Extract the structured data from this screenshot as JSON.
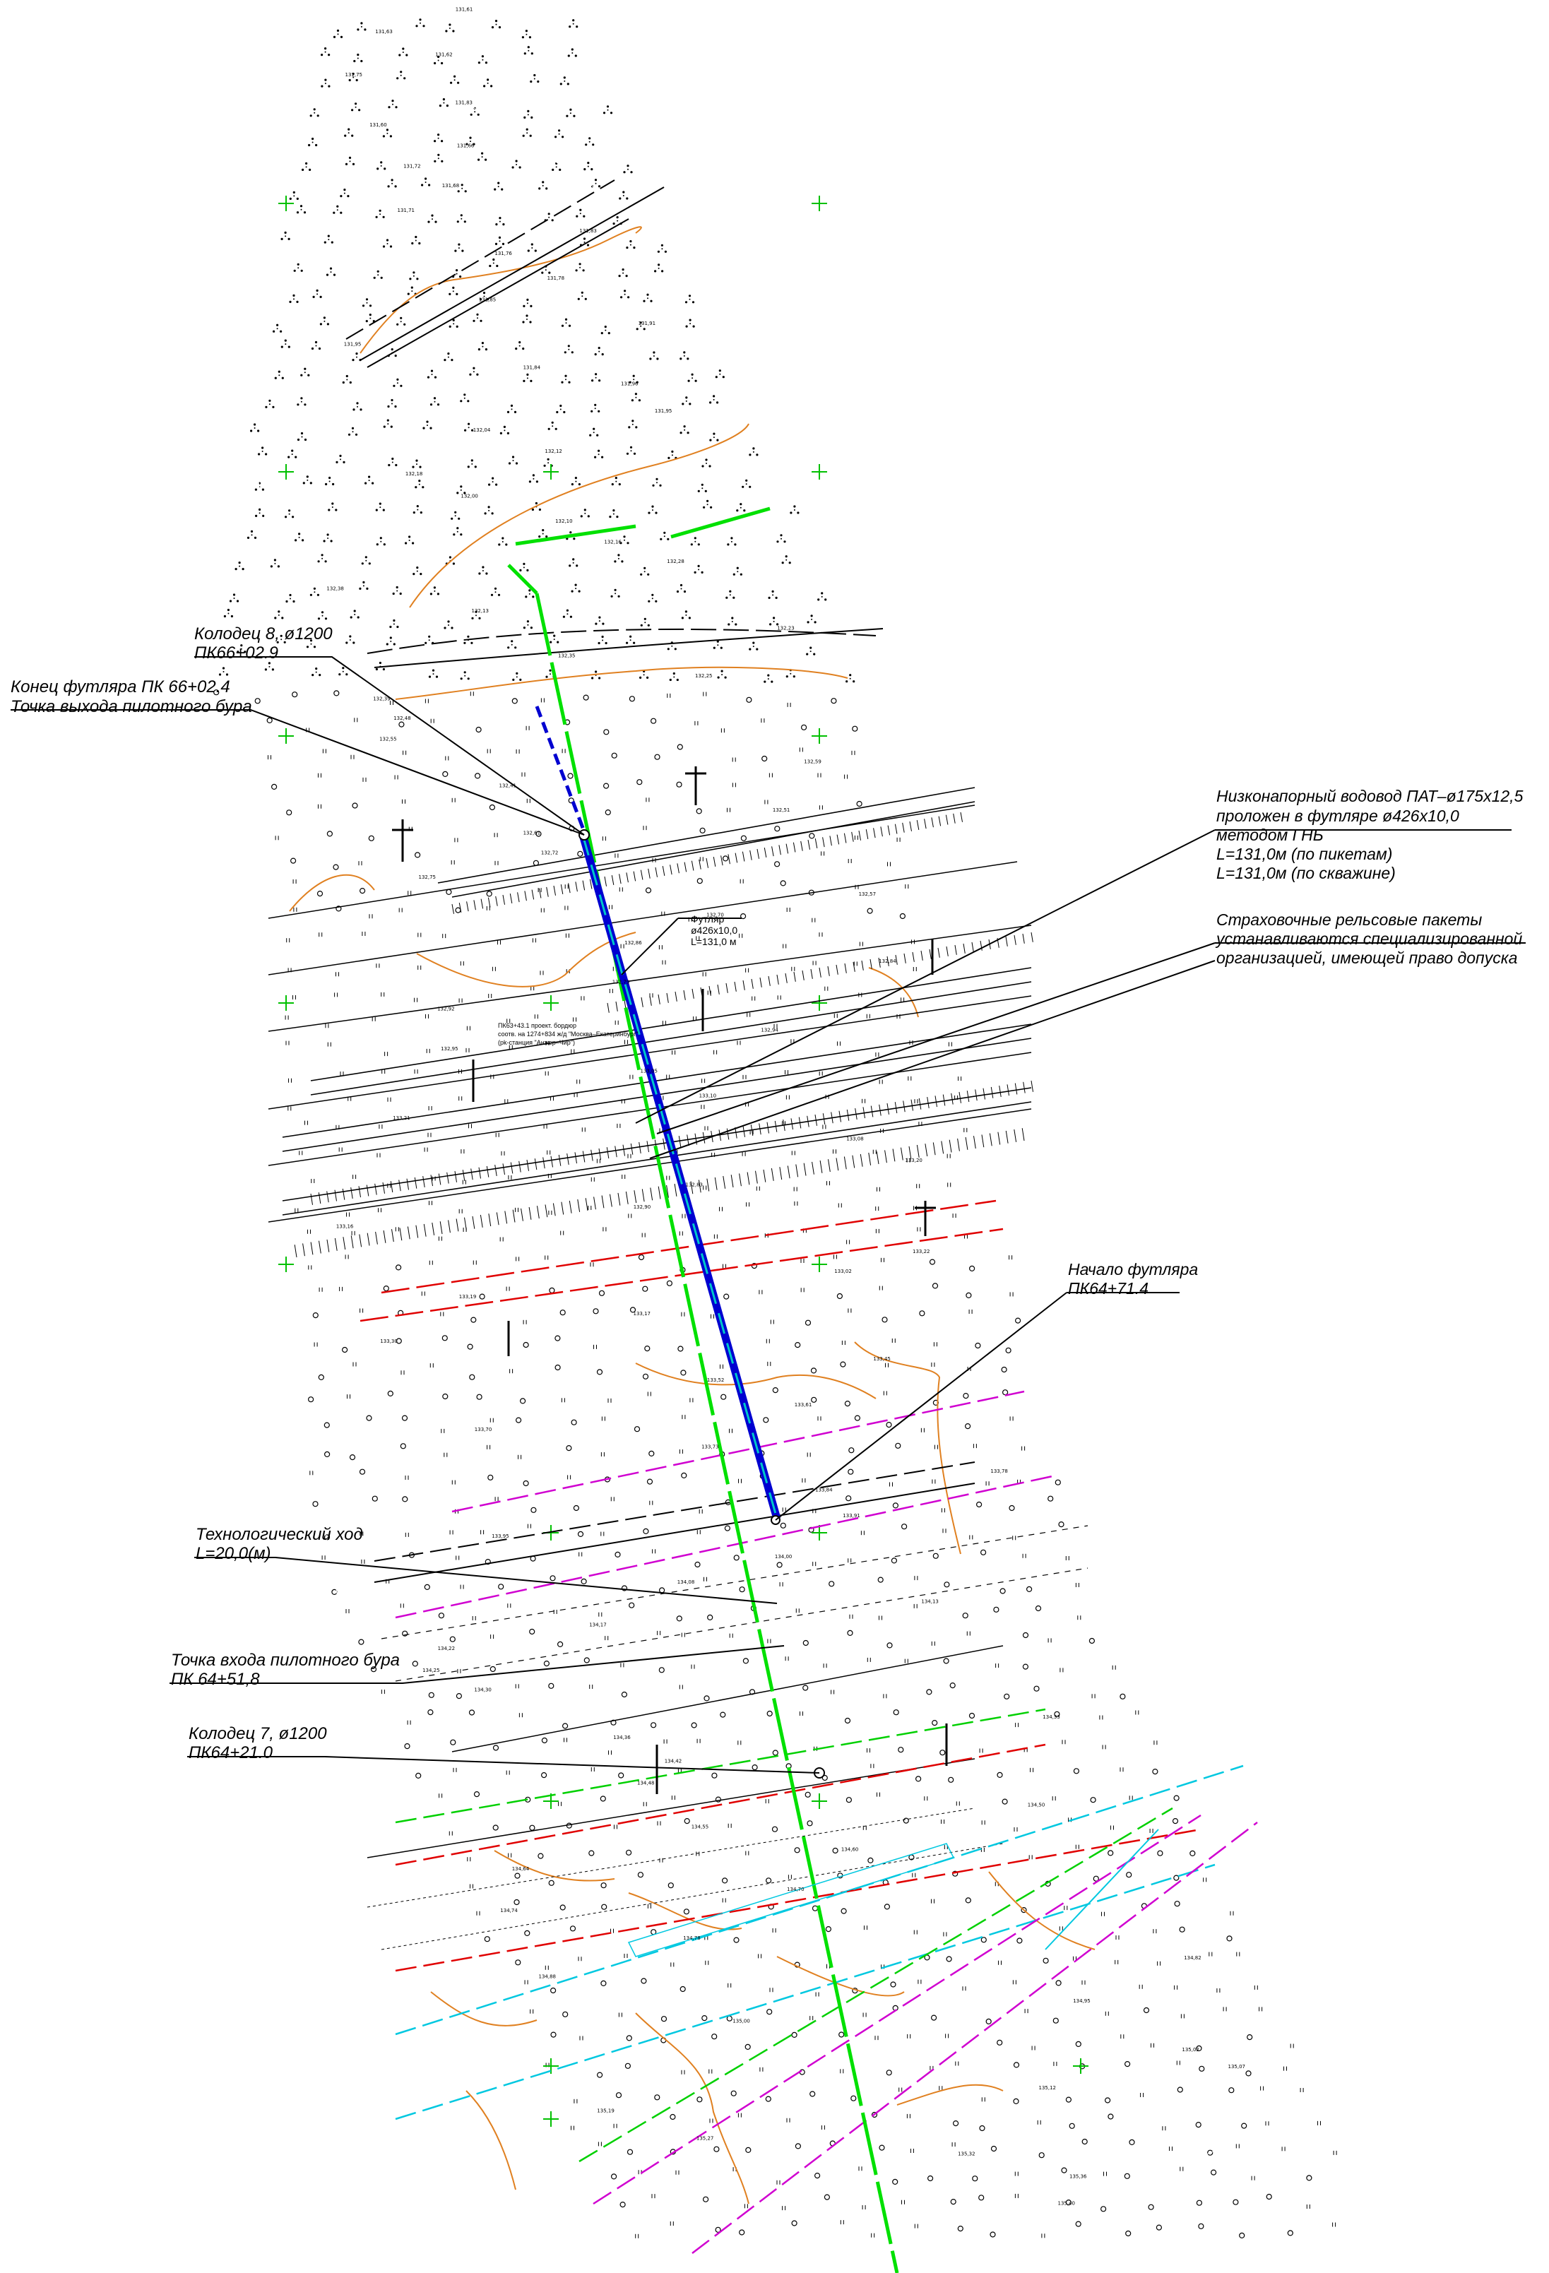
{
  "callouts": [
    {
      "id": "well8",
      "lines": [
        "Колодец 8, ø1200",
        "ПК66+02.9"
      ]
    },
    {
      "id": "casing_end",
      "lines": [
        "Конец футляра ПК 66+02.4",
        "Точка выхода пилотного бура"
      ]
    },
    {
      "id": "pipeline",
      "lines": [
        "Низконапорный водовод  ПАТ–ø175х12,5",
        "проложен в футляре ø426х10,0",
        "методом ГНБ",
        "L=131,0м (по пикетам)",
        "L=131,0м (по скважине)"
      ]
    },
    {
      "id": "rails",
      "lines": [
        "Страховочные рельсовые пакеты",
        "устанавливаются специализированной",
        "организацией, имеющей право допуска"
      ]
    },
    {
      "id": "casing_start",
      "lines": [
        "Начало футляра",
        "ПК64+71.4"
      ]
    },
    {
      "id": "tech_pass",
      "lines": [
        "Технологический ход",
        "L=20,0(м)"
      ]
    },
    {
      "id": "entry_point",
      "lines": [
        "Точка входа пилотного бура",
        "ПК 64+51,8"
      ]
    },
    {
      "id": "well7",
      "lines": [
        "Колодец 7, ø1200",
        "ПК64+21.0"
      ]
    }
  ],
  "inline_labels": {
    "casing_note": [
      "Футляр",
      "ø426х10,0",
      "L=131,0 м"
    ],
    "rail_station": [
      "ПК63+43.1 проект. бордюр",
      "соотв. на 1274+834 ж/д \"Москва–Екатеринбург\"",
      "(pk-станция \"Анжер–Чир\")"
    ]
  },
  "colors": {
    "pipeline": "#00e000",
    "casing": "#0000d0",
    "casing_dash": "#00c8c8",
    "contour": "#e08020",
    "cable_red": "#e00000",
    "cable_magenta": "#d000d0",
    "cable_cyan": "#00c8e0",
    "grid_cross": "#00c000"
  },
  "elevations": [
    "131,61",
    "131,63",
    "131,62",
    "131,75",
    "131,83",
    "131,60",
    "131,66",
    "131,72",
    "131,68",
    "131,71",
    "131,83",
    "131,76",
    "131,78",
    "131,85",
    "131,91",
    "131,95",
    "131,84",
    "131,96",
    "131,95",
    "132,04",
    "132,12",
    "132,18",
    "132,00",
    "132,10",
    "132,16",
    "132,28",
    "132,38",
    "132,13",
    "132,23",
    "132,35",
    "132,25",
    "132,39",
    "132,48",
    "132,55",
    "132,59",
    "132,41",
    "132,51",
    "132,61",
    "132,72",
    "132,75",
    "132,57",
    "132,70",
    "132,86",
    "132,84",
    "132,79",
    "132,92",
    "132,94",
    "132,95",
    "133,05",
    "133,10",
    "133,21",
    "133,08",
    "133,20",
    "132,83",
    "132,90",
    "133,16",
    "133,22",
    "133,02",
    "133,19",
    "133,17",
    "133,30",
    "133,45",
    "133,52",
    "133,61",
    "133,70",
    "133,73",
    "133,78",
    "133,84",
    "133,91",
    "133,95",
    "134,00",
    "134,08",
    "134,13",
    "134,17",
    "134,22",
    "134,25",
    "134,30",
    "134,33",
    "134,36",
    "134,42",
    "134,48",
    "134,50",
    "134,55",
    "134,60",
    "134,64",
    "134,70",
    "134,74",
    "134,78",
    "134,82",
    "134,88",
    "134,95",
    "135,00",
    "135,02",
    "135,07",
    "135,12",
    "135,19",
    "135,27",
    "135,32",
    "135,36",
    "135,40"
  ]
}
